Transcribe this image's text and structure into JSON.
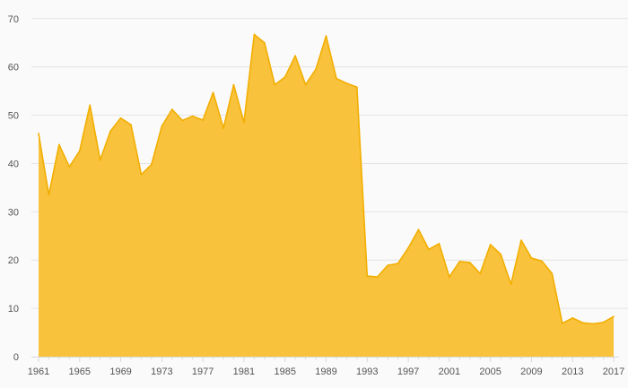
{
  "chart_data": {
    "type": "area",
    "title": "",
    "xlabel": "",
    "ylabel": "",
    "x": [
      1961,
      1962,
      1963,
      1964,
      1965,
      1966,
      1967,
      1968,
      1969,
      1970,
      1971,
      1972,
      1973,
      1974,
      1975,
      1976,
      1977,
      1978,
      1979,
      1980,
      1981,
      1982,
      1983,
      1984,
      1985,
      1986,
      1987,
      1988,
      1989,
      1990,
      1991,
      1992,
      1993,
      1994,
      1995,
      1996,
      1997,
      1998,
      1999,
      2000,
      2001,
      2002,
      2003,
      2004,
      2005,
      2006,
      2007,
      2008,
      2009,
      2010,
      2011,
      2012,
      2013,
      2014,
      2015,
      2016,
      2017
    ],
    "series": [
      {
        "values": [
          46.2,
          33.5,
          43.9,
          39.3,
          42.6,
          52.1,
          40.7,
          46.7,
          49.4,
          48,
          37.7,
          39.8,
          47.7,
          51.2,
          48.9,
          49.8,
          49,
          54.7,
          47.3,
          56.3,
          48.5,
          66.7,
          65,
          56.3,
          57.9,
          62.3,
          56.3,
          59.5,
          66.4,
          57.6,
          56.6,
          55.8,
          16.7,
          16.5,
          18.9,
          19.3,
          22.5,
          26.3,
          22.2,
          23.4,
          16.5,
          19.7,
          19.5,
          17.2,
          23.2,
          21.2,
          15,
          24.1,
          20.4,
          19.8,
          17.2,
          6.9,
          8,
          7,
          6.8,
          7.1,
          8.3
        ]
      }
    ],
    "x_ticks": [
      "1961",
      "1965",
      "1969",
      "1973",
      "1977",
      "1981",
      "1985",
      "1989",
      "1993",
      "1997",
      "2001",
      "2005",
      "2009",
      "2013",
      "2017"
    ],
    "y_ticks": [
      "0",
      "10",
      "20",
      "30",
      "40",
      "50",
      "60",
      "70"
    ],
    "xlim": [
      1961,
      2017
    ],
    "ylim": [
      0,
      72
    ],
    "grid": "horizontal",
    "legend": "none",
    "colors": {
      "fill": "#f9c23c",
      "line": "#f2ae00",
      "grid": "#e4e4e4",
      "axis": "#d8d8d8",
      "tick_text": "#555555"
    }
  }
}
